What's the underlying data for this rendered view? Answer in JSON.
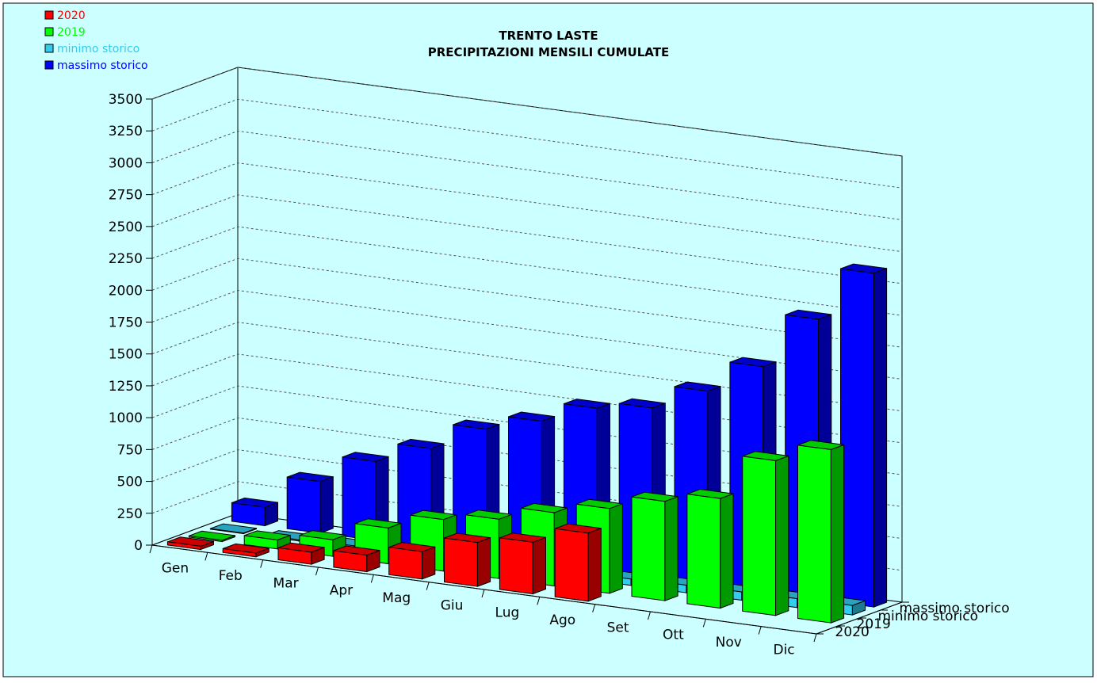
{
  "chart_data": {
    "type": "bar",
    "title": "TRENTO LASTE",
    "subtitle": "PRECIPITAZIONI MENSILI CUMULATE",
    "categories": [
      "Gen",
      "Feb",
      "Mar",
      "Apr",
      "Mag",
      "Giu",
      "Lug",
      "Ago",
      "Set",
      "Ott",
      "Nov",
      "Dic"
    ],
    "ylim": [
      0,
      3500
    ],
    "yticks": [
      "0",
      "250",
      "500",
      "750",
      "1000",
      "1250",
      "1500",
      "1750",
      "2000",
      "2250",
      "2500",
      "2750",
      "3000",
      "3250",
      "3500"
    ],
    "grid": true,
    "legend_position": "top-left",
    "depth_labels": [
      "2020",
      "2019",
      "minimo storico",
      "massimo storico"
    ],
    "series": [
      {
        "name": "2020",
        "color": "#ff0000",
        "values": [
          25,
          30,
          95,
          130,
          215,
          345,
          405,
          535,
          null,
          null,
          null,
          null
        ]
      },
      {
        "name": "2019",
        "color": "#00ff00",
        "values": [
          10,
          70,
          130,
          280,
          405,
          465,
          575,
          665,
          780,
          860,
          1215,
          1360
        ]
      },
      {
        "name": "minimo storico",
        "color": "#33ccee",
        "values": [
          5,
          10,
          20,
          25,
          30,
          40,
          45,
          50,
          60,
          65,
          70,
          75
        ]
      },
      {
        "name": "massimo storico",
        "color": "#0000ff",
        "values": [
          145,
          405,
          620,
          780,
          990,
          1110,
          1270,
          1330,
          1520,
          1770,
          2200,
          2620
        ]
      }
    ]
  }
}
